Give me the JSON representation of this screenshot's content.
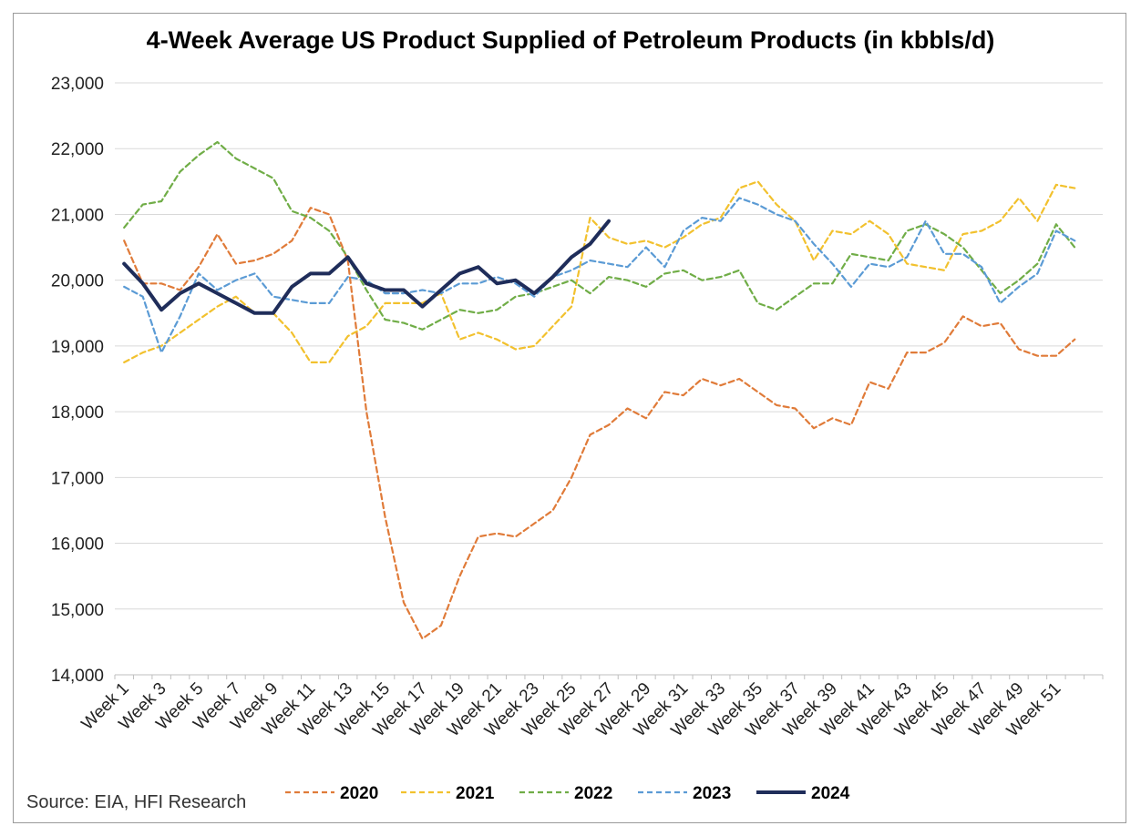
{
  "chart_data": {
    "type": "line",
    "title": "4-Week Average US Product Supplied of Petroleum Products (in kbbls/d)",
    "source": "Source: EIA, HFI Research",
    "xlabel": "",
    "ylabel": "",
    "ylim": [
      14000,
      23000
    ],
    "y_ticks": [
      14000,
      15000,
      16000,
      17000,
      18000,
      19000,
      20000,
      21000,
      22000,
      23000
    ],
    "y_tick_labels": [
      "14,000",
      "15,000",
      "16,000",
      "17,000",
      "18,000",
      "19,000",
      "20,000",
      "21,000",
      "22,000",
      "23,000"
    ],
    "grid": true,
    "legend_position": "bottom",
    "x_tick_labels": [
      "Week 1",
      "Week 3",
      "Week 5",
      "Week 7",
      "Week 9",
      "Week 11",
      "Week 13",
      "Week 15",
      "Week 17",
      "Week 19",
      "Week 21",
      "Week 23",
      "Week 25",
      "Week 27",
      "Week 29",
      "Week 31",
      "Week 33",
      "Week 35",
      "Week 37",
      "Week 39",
      "Week 41",
      "Week 43",
      "Week 45",
      "Week 47",
      "Week 49",
      "Week 51"
    ],
    "x_tick_weeks": [
      1,
      3,
      5,
      7,
      9,
      11,
      13,
      15,
      17,
      19,
      21,
      23,
      25,
      27,
      29,
      31,
      33,
      35,
      37,
      39,
      41,
      43,
      45,
      47,
      49,
      51
    ],
    "x_count": 53,
    "series": [
      {
        "name": "2020",
        "color": "#e07b39",
        "style": "dashed",
        "values": [
          20600,
          19950,
          19950,
          19850,
          20200,
          20700,
          20250,
          20300,
          20400,
          20600,
          21100,
          21000,
          20300,
          18000,
          16400,
          15100,
          14550,
          14750,
          15500,
          16100,
          16150,
          16100,
          16300,
          16500,
          17000,
          17650,
          17800,
          18050,
          17900,
          18300,
          18250,
          18500,
          18400,
          18500,
          18300,
          18100,
          18050,
          17750,
          17900,
          17800,
          18450,
          18350,
          18900,
          18900,
          19050,
          19450,
          19300,
          19350,
          18950,
          18850,
          18850,
          19100
        ]
      },
      {
        "name": "2021",
        "color": "#f2c12e",
        "style": "dashed",
        "values": [
          18750,
          18900,
          19000,
          19200,
          19400,
          19600,
          19750,
          19500,
          19500,
          19200,
          18750,
          18750,
          19150,
          19300,
          19650,
          19650,
          19650,
          19800,
          19100,
          19200,
          19100,
          18950,
          19000,
          19300,
          19600,
          20950,
          20650,
          20550,
          20600,
          20500,
          20650,
          20850,
          20950,
          21400,
          21500,
          21150,
          20900,
          20300,
          20750,
          20700,
          20900,
          20700,
          20250,
          20200,
          20150,
          20700,
          20750,
          20900,
          21250,
          20900,
          21450,
          21400
        ]
      },
      {
        "name": "2022",
        "color": "#70ad47",
        "style": "dashed",
        "values": [
          20800,
          21150,
          21200,
          21650,
          21900,
          22100,
          21850,
          21700,
          21550,
          21050,
          20950,
          20750,
          20350,
          19850,
          19400,
          19350,
          19250,
          19400,
          19550,
          19500,
          19550,
          19750,
          19800,
          19900,
          20000,
          19800,
          20050,
          20000,
          19900,
          20100,
          20150,
          20000,
          20050,
          20150,
          19650,
          19550,
          19750,
          19950,
          19950,
          20400,
          20350,
          20300,
          20750,
          20850,
          20700,
          20500,
          20150,
          19800,
          20000,
          20250,
          20850,
          20500
        ]
      },
      {
        "name": "2023",
        "color": "#5b9bd5",
        "style": "dashed",
        "values": [
          19900,
          19750,
          18900,
          19450,
          20100,
          19850,
          20000,
          20100,
          19750,
          19700,
          19650,
          19650,
          20050,
          20000,
          19800,
          19800,
          19850,
          19800,
          19950,
          19950,
          20050,
          19950,
          19750,
          20050,
          20150,
          20300,
          20250,
          20200,
          20500,
          20200,
          20750,
          20950,
          20900,
          21250,
          21150,
          21000,
          20900,
          20550,
          20250,
          19900,
          20250,
          20200,
          20350,
          20900,
          20400,
          20400,
          20200,
          19650,
          19900,
          20100,
          20750,
          20600
        ]
      },
      {
        "name": "2024",
        "color": "#1f2d5a",
        "style": "solid",
        "values": [
          20250,
          19950,
          19550,
          19800,
          19950,
          19800,
          19650,
          19500,
          19500,
          19900,
          20100,
          20100,
          20350,
          19950,
          19850,
          19850,
          19600,
          19850,
          20100,
          20200,
          19950,
          20000,
          19800,
          20050,
          20350,
          20550,
          20900
        ]
      }
    ]
  }
}
